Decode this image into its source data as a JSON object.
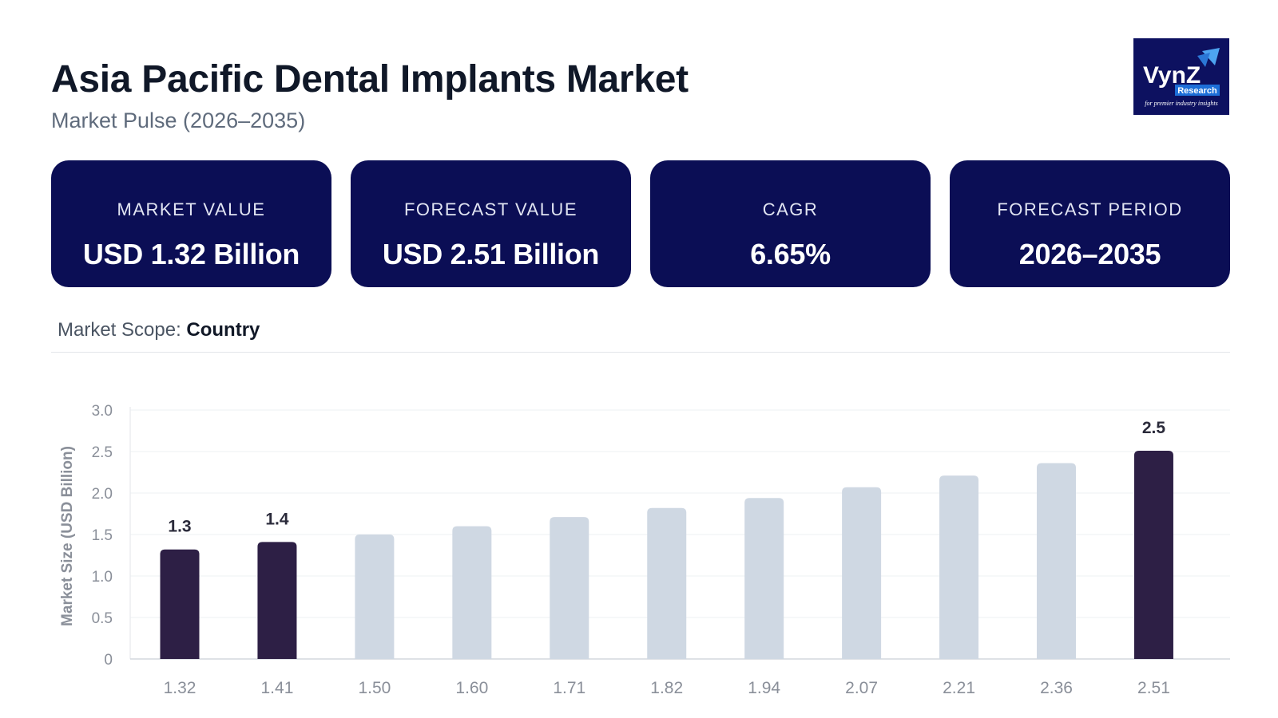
{
  "header": {
    "title": "Asia Pacific Dental Implants Market",
    "subtitle": "Market Pulse (2026–2035)"
  },
  "logo": {
    "brand": "VynZ",
    "sub": "Research",
    "tagline": "for premier industry insights",
    "background": "#0d1160"
  },
  "cards": [
    {
      "label": "MARKET VALUE",
      "value": "USD 1.32 Billion"
    },
    {
      "label": "FORECAST VALUE",
      "value": "USD 2.51 Billion"
    },
    {
      "label": "CAGR",
      "value": "6.65%"
    },
    {
      "label": "FORECAST PERIOD",
      "value": "2026–2035"
    }
  ],
  "scope": {
    "label": "Market Scope:",
    "value": "Country"
  },
  "colors": {
    "card_bg": "#0b0e55",
    "bar_highlight": "#2d1f45",
    "bar_default": "#cfd8e3"
  },
  "chart_data": {
    "type": "bar",
    "categories": [
      "1.32",
      "1.41",
      "1.50",
      "1.60",
      "1.71",
      "1.82",
      "1.94",
      "2.07",
      "2.21",
      "2.36",
      "2.51"
    ],
    "values": [
      1.32,
      1.41,
      1.5,
      1.6,
      1.71,
      1.82,
      1.94,
      2.07,
      2.21,
      2.36,
      2.51
    ],
    "highlighted": [
      0,
      1,
      10
    ],
    "data_labels": [
      "1.3",
      "1.4",
      "",
      "",
      "",
      "",
      "",
      "",
      "",
      "",
      "2.5"
    ],
    "ylabel": "Market Size (USD Billion)",
    "xlabel": "",
    "ylim": [
      0,
      3.0
    ],
    "yticks": [
      "0",
      "0.5",
      "1.0",
      "1.5",
      "2.0",
      "2.5",
      "3.0"
    ],
    "ytick_values": [
      0,
      0.5,
      1.0,
      1.5,
      2.0,
      2.5,
      3.0
    ],
    "grid": true
  }
}
